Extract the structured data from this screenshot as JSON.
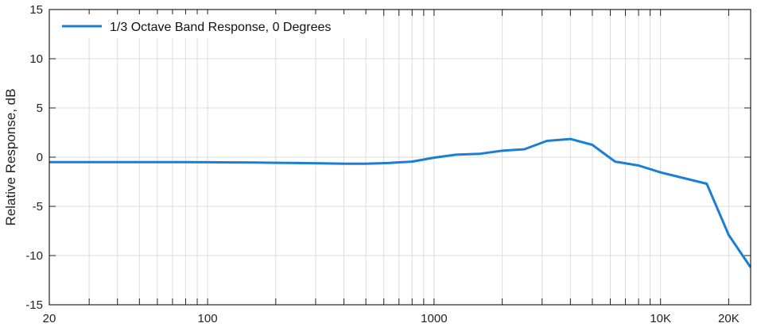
{
  "chart_data": {
    "type": "line",
    "title": "",
    "xlabel": "",
    "ylabel": "Relative Response, dB",
    "x_scale": "log",
    "xlim": [
      20,
      25000
    ],
    "ylim": [
      -15,
      15
    ],
    "grid": true,
    "legend_position": "top-left",
    "x_ticks": [
      {
        "value": 20,
        "label": "20"
      },
      {
        "value": 100,
        "label": "100"
      },
      {
        "value": 1000,
        "label": "1000"
      },
      {
        "value": 10000,
        "label": "10K"
      },
      {
        "value": 20000,
        "label": "20K"
      }
    ],
    "y_ticks": [
      {
        "value": 15,
        "label": "15"
      },
      {
        "value": 10,
        "label": "10"
      },
      {
        "value": 5,
        "label": "5"
      },
      {
        "value": 0,
        "label": "0"
      },
      {
        "value": -5,
        "label": "-5"
      },
      {
        "value": -10,
        "label": "-10"
      },
      {
        "value": -15,
        "label": "-15"
      }
    ],
    "series": [
      {
        "name": "1/3 Octave Band Response, 0 Degrees",
        "color": "#1a7fd4",
        "x": [
          20,
          25,
          31.5,
          40,
          50,
          63,
          80,
          100,
          125,
          160,
          200,
          250,
          315,
          400,
          500,
          630,
          800,
          1000,
          1250,
          1600,
          2000,
          2500,
          3150,
          4000,
          5000,
          6300,
          8000,
          10000,
          12500,
          16000,
          20000,
          25000
        ],
        "y": [
          -0.5,
          -0.5,
          -0.5,
          -0.5,
          -0.5,
          -0.5,
          -0.5,
          -0.52,
          -0.53,
          -0.55,
          -0.57,
          -0.6,
          -0.62,
          -0.66,
          -0.67,
          -0.6,
          -0.45,
          -0.05,
          0.25,
          0.35,
          0.65,
          0.8,
          1.65,
          1.85,
          1.25,
          -0.45,
          -0.85,
          -1.55,
          -2.1,
          -2.7,
          -7.9,
          -11.2
        ]
      }
    ]
  }
}
